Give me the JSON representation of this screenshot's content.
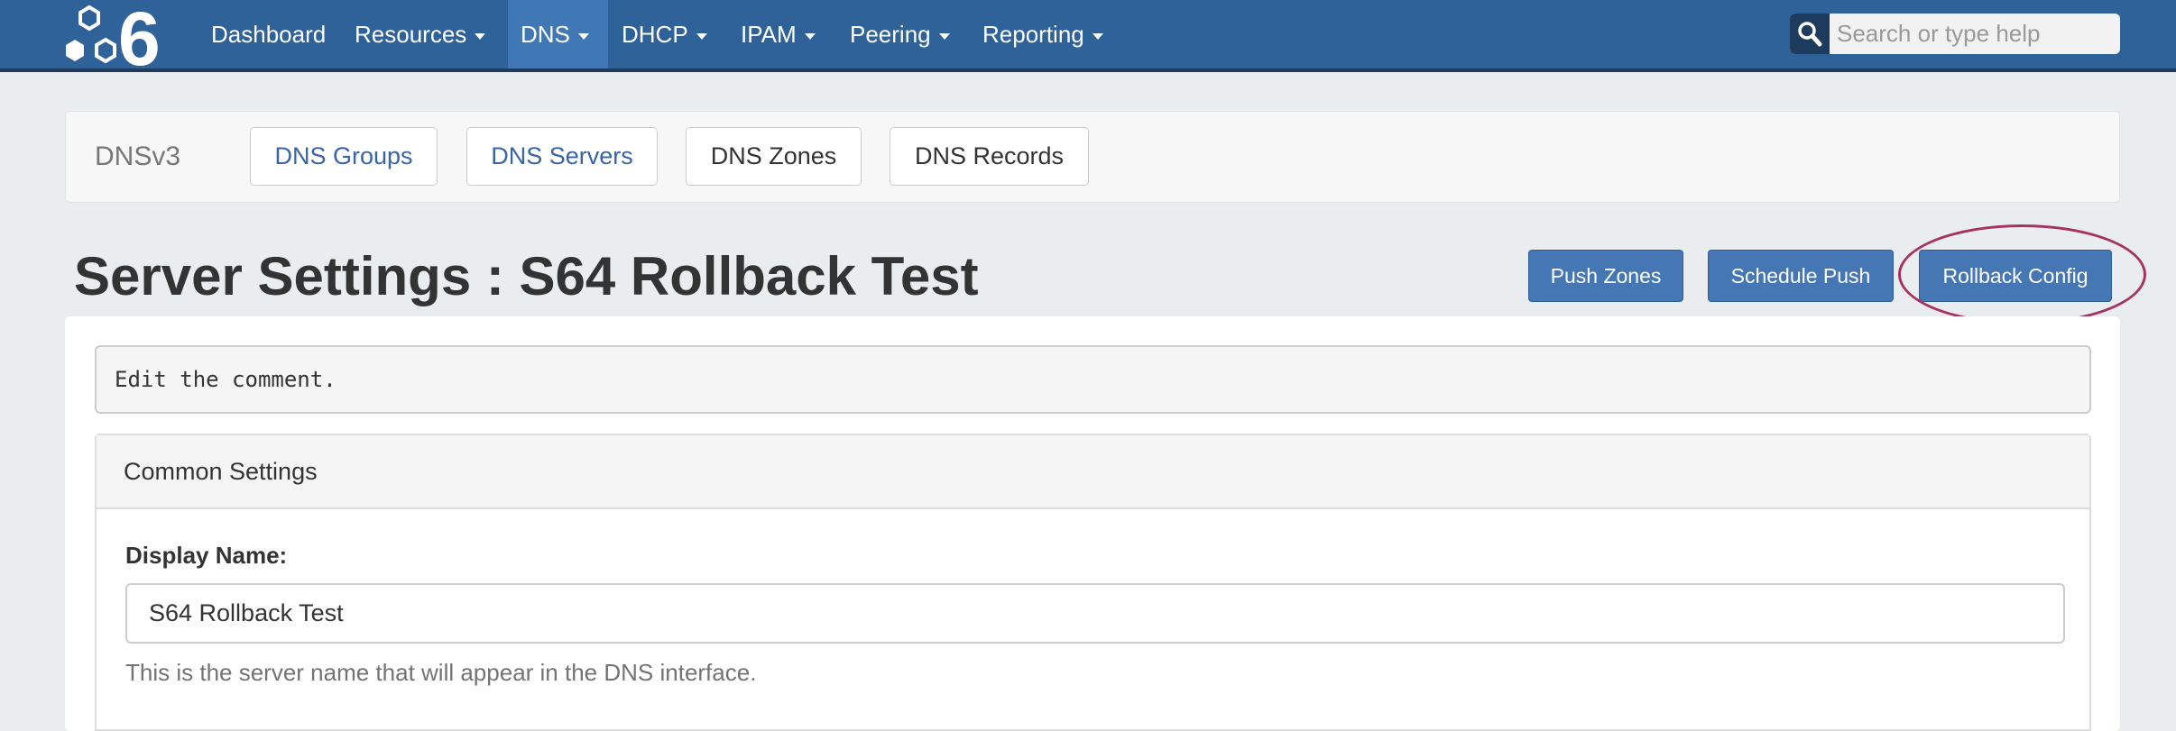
{
  "nav": {
    "logo": "6",
    "items": [
      {
        "label": "Dashboard",
        "dropdown": false
      },
      {
        "label": "Resources",
        "dropdown": true
      },
      {
        "label": "DNS",
        "dropdown": true,
        "active": true
      },
      {
        "label": "DHCP",
        "dropdown": true
      },
      {
        "label": "IPAM",
        "dropdown": true
      },
      {
        "label": "Peering",
        "dropdown": true
      },
      {
        "label": "Reporting",
        "dropdown": true
      }
    ],
    "search_placeholder": "Search or type help",
    "search_icon": "magnifier-icon"
  },
  "subnav": {
    "brand": "DNSv3",
    "buttons": [
      "DNS Groups",
      "DNS Servers",
      "DNS Zones",
      "DNS Records"
    ]
  },
  "page": {
    "title": "Server Settings : S64 Rollback Test",
    "actions": [
      "Push Zones",
      "Schedule Push",
      "Rollback Config"
    ],
    "highlight_color": "#a8325e"
  },
  "comment": "Edit the comment.",
  "common": {
    "header": "Common Settings",
    "display_name_label": "Display Name:",
    "display_name_value": "S64 Rollback Test",
    "display_name_help": "This is the server name that will appear in the DNS interface."
  },
  "colors": {
    "navbar": "#2e6299",
    "nav_active": "#3f78b4",
    "button": "#4477b4"
  }
}
